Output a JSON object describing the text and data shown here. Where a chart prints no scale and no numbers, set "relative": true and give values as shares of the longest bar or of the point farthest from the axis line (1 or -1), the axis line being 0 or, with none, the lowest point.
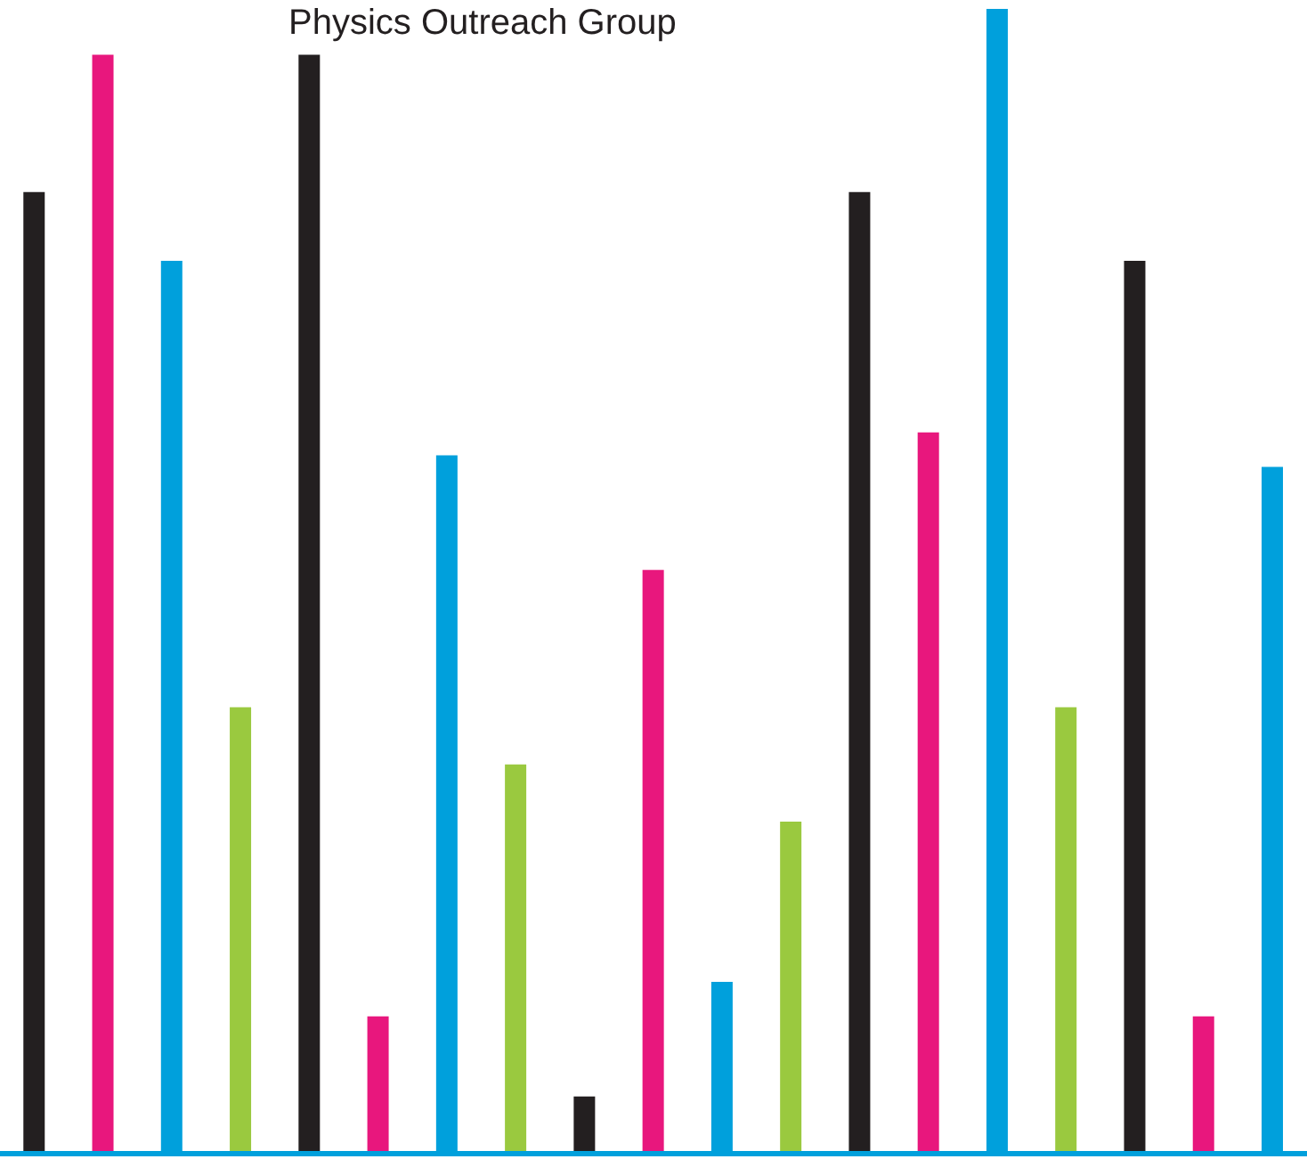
{
  "chart_data": {
    "type": "bar",
    "title": "Physics Outreach Group",
    "relative": true,
    "categories": [
      null,
      null,
      null,
      null,
      null,
      null,
      null,
      null,
      null,
      null,
      null,
      null,
      null,
      null,
      null,
      null,
      null,
      null,
      null
    ],
    "values": [
      0.84,
      0.96,
      0.78,
      0.39,
      0.96,
      0.12,
      0.61,
      0.34,
      0.05,
      0.51,
      0.15,
      0.29,
      0.84,
      0.63,
      1,
      0.39,
      0.78,
      0.12,
      0.6
    ],
    "colors": [
      "#231f20",
      "#e8177d",
      "#00a0dc",
      "#9ac93f",
      "#231f20",
      "#e8177d",
      "#00a0dc",
      "#9ac93f",
      "#231f20",
      "#e8177d",
      "#00a0dc",
      "#9ac93f",
      "#231f20",
      "#e8177d",
      "#00a0dc",
      "#9ac93f",
      "#231f20",
      "#e8177d",
      "#00a0dc"
    ],
    "grid": false,
    "legend": false
  }
}
